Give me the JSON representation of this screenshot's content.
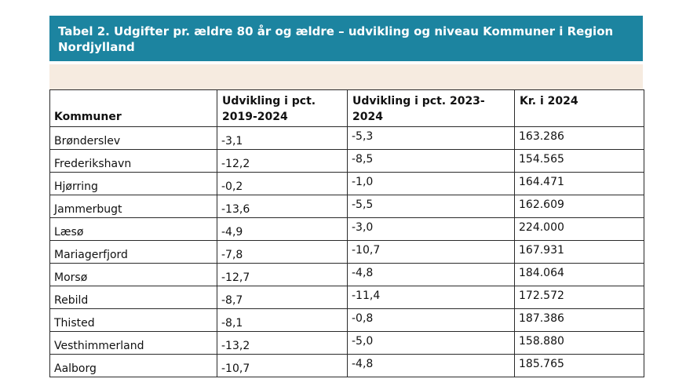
{
  "title": "Tabel 2.  Udgifter pr. ældre 80 år og ældre – udvikling og niveau Kommuner i Region Nordjylland",
  "colors": {
    "title_bar": "#1c84a0",
    "band": "#f6ebe0"
  },
  "table": {
    "headers": {
      "kommuner": "Kommuner",
      "dev_2019_2024": "Udvikling i pct. 2019-2024",
      "dev_2023_2024": "Udvikling i pct. 2023-2024",
      "kr_2024": "Kr. i 2024"
    },
    "rows": [
      {
        "name": "Brønderslev",
        "dev_2019_2024": "-3,1",
        "dev_2023_2024": "-5,3",
        "kr_2024": "163.286"
      },
      {
        "name": "Frederikshavn",
        "dev_2019_2024": "-12,2",
        "dev_2023_2024": "-8,5",
        "kr_2024": "154.565"
      },
      {
        "name": "Hjørring",
        "dev_2019_2024": "-0,2",
        "dev_2023_2024": "-1,0",
        "kr_2024": "164.471"
      },
      {
        "name": "Jammerbugt",
        "dev_2019_2024": "-13,6",
        "dev_2023_2024": "-5,5",
        "kr_2024": "162.609"
      },
      {
        "name": "Læsø",
        "dev_2019_2024": "-4,9",
        "dev_2023_2024": "-3,0",
        "kr_2024": "224.000"
      },
      {
        "name": "Mariagerfjord",
        "dev_2019_2024": "-7,8",
        "dev_2023_2024": "-10,7",
        "kr_2024": "167.931"
      },
      {
        "name": "Morsø",
        "dev_2019_2024": "-12,7",
        "dev_2023_2024": "-4,8",
        "kr_2024": "184.064"
      },
      {
        "name": "Rebild",
        "dev_2019_2024": "-8,7",
        "dev_2023_2024": "-11,4",
        "kr_2024": "172.572"
      },
      {
        "name": "Thisted",
        "dev_2019_2024": "-8,1",
        "dev_2023_2024": "-0,8",
        "kr_2024": "187.386"
      },
      {
        "name": "Vesthimmerland",
        "dev_2019_2024": "-13,2",
        "dev_2023_2024": "-5,0",
        "kr_2024": "158.880"
      },
      {
        "name": "Aalborg",
        "dev_2019_2024": "-10,7",
        "dev_2023_2024": "-4,8",
        "kr_2024": "185.765"
      }
    ]
  }
}
